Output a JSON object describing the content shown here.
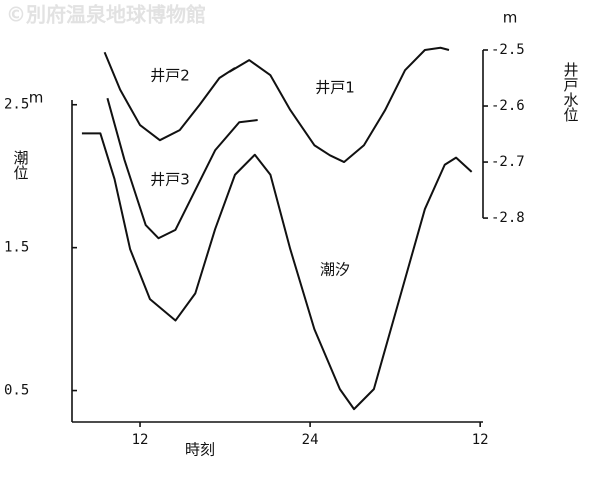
{
  "chart_data": {
    "type": "line",
    "watermark": "©別府温泉地球博物館",
    "xlabel": "時刻",
    "ylabel": "潮位",
    "yunit": "m",
    "y2label": "井戸水位",
    "y2unit": "m",
    "xlim": [
      7.2,
      36.2
    ],
    "xticks": [
      12,
      24,
      {
        "value": 36,
        "label": "12"
      }
    ],
    "ylim": [
      0.28,
      2.883
    ],
    "yticks": [
      0.5,
      1.5,
      2.5
    ],
    "y2lim": [
      -3.164,
      -2.5
    ],
    "y2ticks": [
      -2.5,
      -2.6,
      -2.7,
      -2.8
    ],
    "series": [
      {
        "name": "潮汐",
        "color": "#111111",
        "axis": "y",
        "x": [
          7.9,
          9.2,
          10.2,
          11.3,
          12.7,
          14.5,
          15.9,
          17.3,
          18.7,
          20.1,
          21.2,
          22.6,
          24.3,
          26.1,
          27.1,
          28.5,
          30.3,
          32.1,
          33.5,
          34.3,
          35.4
        ],
        "values": [
          2.3,
          2.3,
          1.98,
          1.49,
          1.14,
          0.99,
          1.18,
          1.63,
          2.01,
          2.15,
          2.01,
          1.49,
          0.93,
          0.51,
          0.37,
          0.51,
          1.14,
          1.77,
          2.08,
          2.13,
          2.03
        ]
      },
      {
        "name": "井戸1",
        "color": "#111111",
        "axis": "y2",
        "x": [
          18.3,
          19.7,
          21.2,
          22.6,
          24.3,
          25.4,
          26.4,
          27.8,
          29.3,
          30.7,
          32.1,
          33.2,
          33.8
        ],
        "values": [
          -2.539,
          -2.518,
          -2.545,
          -2.607,
          -2.67,
          -2.688,
          -2.7,
          -2.67,
          -2.607,
          -2.536,
          -2.5,
          -2.496,
          -2.5
        ]
      },
      {
        "name": "井戸2",
        "color": "#111111",
        "axis": "y2",
        "x": [
          9.5,
          10.6,
          12.0,
          13.4,
          14.8,
          16.2,
          17.6,
          18.7
        ],
        "values": [
          -2.504,
          -2.571,
          -2.634,
          -2.661,
          -2.643,
          -2.598,
          -2.55,
          -2.532
        ]
      },
      {
        "name": "井戸3",
        "color": "#111111",
        "axis": "y2",
        "x": [
          9.7,
          10.9,
          12.4,
          13.3,
          14.5,
          15.9,
          17.3,
          19.0,
          20.3
        ],
        "values": [
          -2.586,
          -2.696,
          -2.8125,
          -2.836,
          -2.821,
          -2.75,
          -2.679,
          -2.629,
          -2.625
        ]
      }
    ]
  }
}
